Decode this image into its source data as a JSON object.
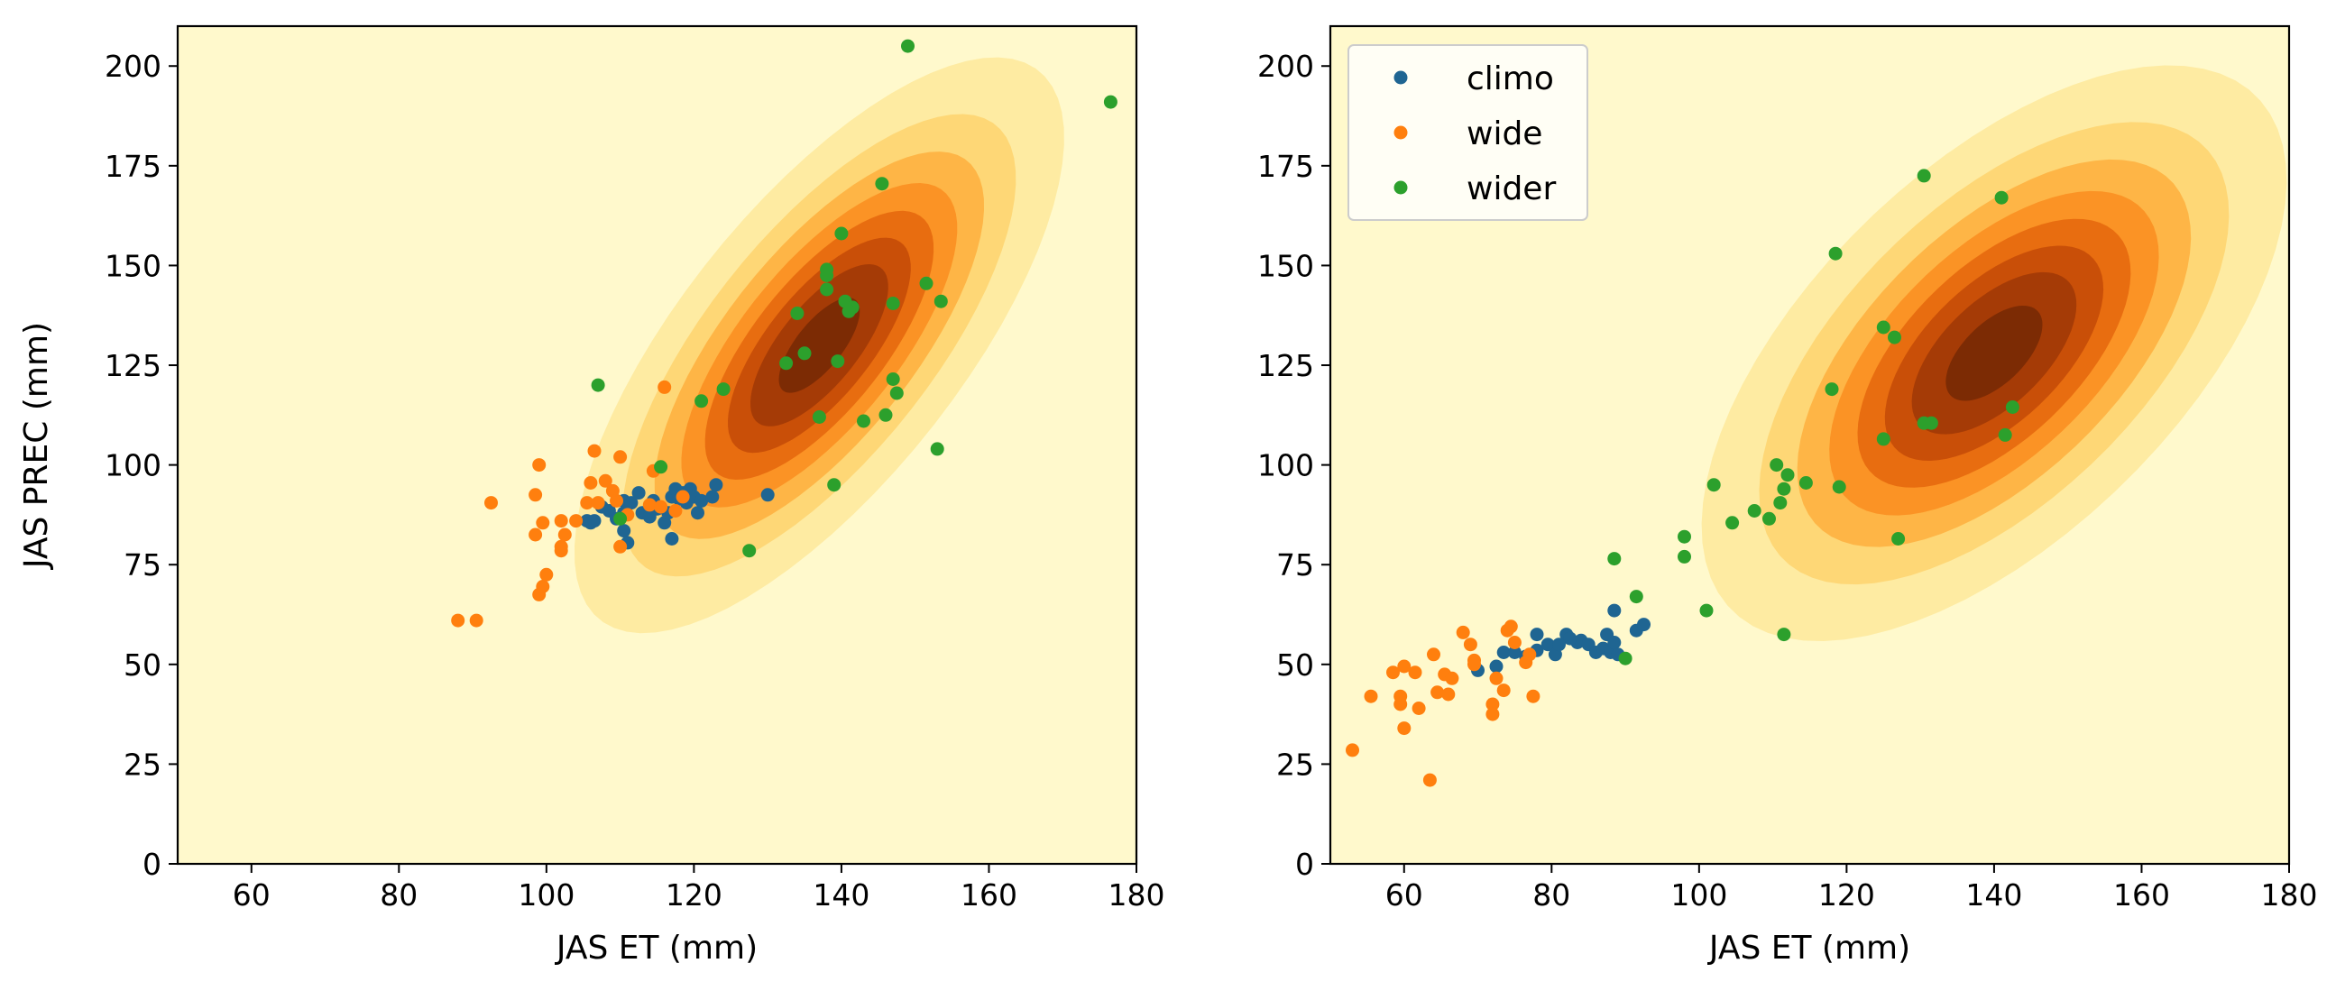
{
  "colors": {
    "background": "#fff9cc",
    "kde_levels": [
      "#fff9cc",
      "#feeba2",
      "#fed776",
      "#feb546",
      "#fb9325",
      "#e86d10",
      "#c94f08",
      "#a53b06",
      "#7c2b04"
    ],
    "climo": "#1f6592",
    "wide": "#ff7f0e",
    "wider": "#2ca02c"
  },
  "chart_data": [
    {
      "type": "scatter",
      "panel": "left",
      "xlabel": "JAS ET (mm)",
      "ylabel": "JAS PREC (mm)",
      "xlim": [
        50,
        180
      ],
      "ylim": [
        0,
        210
      ],
      "xticks": [
        "60",
        "80",
        "100",
        "120",
        "140",
        "160",
        "180"
      ],
      "yticks": [
        "0",
        "25",
        "50",
        "75",
        "100",
        "125",
        "150",
        "175",
        "200"
      ],
      "grid": false,
      "legend": false,
      "kde_background": {
        "center": [
          137,
          130
        ],
        "sd": [
          14.4,
          31.3
        ],
        "correlation": 0.72,
        "levels": [
          0.07,
          0.18,
          0.3,
          0.43,
          0.56,
          0.69,
          0.81,
          0.93
        ],
        "color_scale": "YlOrBr"
      },
      "series": [
        {
          "name": "climo",
          "color": "#1f6592",
          "points": [
            [
              105.5,
              86
            ],
            [
              106,
              85.5
            ],
            [
              106.5,
              86
            ],
            [
              107.5,
              89.5
            ],
            [
              108.5,
              88.5
            ],
            [
              109.5,
              86.5
            ],
            [
              110.5,
              88
            ],
            [
              110.5,
              91
            ],
            [
              110.5,
              83.5
            ],
            [
              111,
              80.5
            ],
            [
              111.5,
              90.5
            ],
            [
              112.5,
              93
            ],
            [
              113,
              88
            ],
            [
              114,
              87
            ],
            [
              114.5,
              91
            ],
            [
              115,
              89
            ],
            [
              116,
              85.5
            ],
            [
              116.5,
              88
            ],
            [
              117,
              92
            ],
            [
              117,
              81.5
            ],
            [
              117.5,
              94
            ],
            [
              118,
              91.5
            ],
            [
              118.5,
              93
            ],
            [
              119,
              90.5
            ],
            [
              119.5,
              94
            ],
            [
              120,
              92
            ],
            [
              120.5,
              88
            ],
            [
              121,
              91
            ],
            [
              122.5,
              92
            ],
            [
              123,
              95
            ],
            [
              130,
              92.5
            ]
          ]
        },
        {
          "name": "wide",
          "color": "#ff7f0e",
          "points": [
            [
              88,
              61
            ],
            [
              90.5,
              61
            ],
            [
              92.5,
              90.5
            ],
            [
              98.5,
              82.5
            ],
            [
              98.5,
              92.5
            ],
            [
              99,
              100
            ],
            [
              99,
              67.5
            ],
            [
              99.5,
              85.5
            ],
            [
              99.5,
              69.5
            ],
            [
              100,
              72.5
            ],
            [
              102,
              78.5
            ],
            [
              102,
              86
            ],
            [
              102.5,
              82.5
            ],
            [
              104,
              86
            ],
            [
              105.5,
              90.5
            ],
            [
              106,
              95.5
            ],
            [
              106.5,
              103.5
            ],
            [
              107,
              90.5
            ],
            [
              108,
              96
            ],
            [
              109,
              93.5
            ],
            [
              109.5,
              91
            ],
            [
              110,
              79.5
            ],
            [
              110,
              102
            ],
            [
              111,
              87.5
            ],
            [
              114,
              90
            ],
            [
              114.5,
              98.5
            ],
            [
              115.5,
              89.5
            ],
            [
              116,
              119.5
            ],
            [
              117.5,
              88.5
            ],
            [
              118.5,
              92
            ],
            [
              102,
              79.5
            ]
          ]
        },
        {
          "name": "wider",
          "color": "#2ca02c",
          "points": [
            [
              107,
              120
            ],
            [
              110,
              86.5
            ],
            [
              115.5,
              99.5
            ],
            [
              121,
              116
            ],
            [
              124,
              119
            ],
            [
              127.5,
              78.5
            ],
            [
              132.5,
              125.5
            ],
            [
              134,
              138
            ],
            [
              135,
              128
            ],
            [
              137,
              112
            ],
            [
              138,
              144
            ],
            [
              138,
              147.5
            ],
            [
              138,
              149
            ],
            [
              139,
              95
            ],
            [
              139.5,
              126
            ],
            [
              140,
              158
            ],
            [
              140.5,
              141
            ],
            [
              141.5,
              139.5
            ],
            [
              141,
              138.5
            ],
            [
              143,
              111
            ],
            [
              145.5,
              170.5
            ],
            [
              146,
              112.5
            ],
            [
              147,
              140.5
            ],
            [
              147,
              121.5
            ],
            [
              147.5,
              118
            ],
            [
              149,
              205
            ],
            [
              151.5,
              145.5
            ],
            [
              153,
              104
            ],
            [
              153.5,
              141
            ],
            [
              176.5,
              191
            ]
          ]
        }
      ]
    },
    {
      "type": "scatter",
      "panel": "right",
      "xlabel": "JAS ET (mm)",
      "ylabel": "",
      "xlim": [
        50,
        180
      ],
      "ylim": [
        0,
        210
      ],
      "xticks": [
        "60",
        "80",
        "100",
        "120",
        "140",
        "160",
        "180"
      ],
      "yticks": [
        "0",
        "25",
        "50",
        "75",
        "100",
        "125",
        "150",
        "175",
        "200"
      ],
      "grid": false,
      "legend": {
        "position": "top-left",
        "entries": [
          "climo",
          "wide",
          "wider"
        ]
      },
      "kde_background": {
        "center": [
          140,
          128
        ],
        "sd": [
          17.2,
          31.3
        ],
        "correlation": 0.6,
        "levels": [
          0.07,
          0.18,
          0.3,
          0.43,
          0.56,
          0.69,
          0.81,
          0.93
        ],
        "color_scale": "YlOrBr"
      },
      "series": [
        {
          "name": "climo",
          "color": "#1f6592",
          "points": [
            [
              70,
              48.5
            ],
            [
              72.5,
              49.5
            ],
            [
              73.5,
              53
            ],
            [
              75,
              53
            ],
            [
              76.5,
              52
            ],
            [
              78,
              53.5
            ],
            [
              78,
              57.5
            ],
            [
              79.5,
              55
            ],
            [
              80.5,
              52.5
            ],
            [
              82,
              57.5
            ],
            [
              83.5,
              55.5
            ],
            [
              84,
              56
            ],
            [
              85,
              55
            ],
            [
              86,
              53
            ],
            [
              87,
              54
            ],
            [
              87.5,
              57.5
            ],
            [
              88,
              53
            ],
            [
              88.5,
              63.5
            ],
            [
              88.5,
              55.5
            ],
            [
              89,
              52.5
            ],
            [
              91.5,
              58.5
            ],
            [
              92.5,
              60
            ],
            [
              82.5,
              56.5
            ],
            [
              81,
              55
            ]
          ]
        },
        {
          "name": "wide",
          "color": "#ff7f0e",
          "points": [
            [
              53,
              28.5
            ],
            [
              55.5,
              42
            ],
            [
              58.5,
              48
            ],
            [
              59.5,
              42
            ],
            [
              59.5,
              40
            ],
            [
              60,
              49.5
            ],
            [
              60,
              34
            ],
            [
              61.5,
              48
            ],
            [
              62,
              39
            ],
            [
              63.5,
              21
            ],
            [
              64,
              52.5
            ],
            [
              64.5,
              43
            ],
            [
              65.5,
              47.5
            ],
            [
              66,
              42.5
            ],
            [
              66.5,
              46.5
            ],
            [
              68,
              58
            ],
            [
              69,
              55
            ],
            [
              69.5,
              51
            ],
            [
              69.5,
              50
            ],
            [
              72,
              40
            ],
            [
              72,
              37.5
            ],
            [
              72.5,
              46.5
            ],
            [
              73.5,
              43.5
            ],
            [
              74,
              58.5
            ],
            [
              74.5,
              59.5
            ],
            [
              75,
              55.5
            ],
            [
              76.5,
              50.5
            ],
            [
              77,
              52.5
            ],
            [
              77.5,
              42
            ]
          ]
        },
        {
          "name": "wider",
          "color": "#2ca02c",
          "points": [
            [
              88.5,
              76.5
            ],
            [
              90,
              51.5
            ],
            [
              91.5,
              67
            ],
            [
              98,
              77
            ],
            [
              98,
              82
            ],
            [
              101,
              63.5
            ],
            [
              102,
              95
            ],
            [
              104.5,
              85.5
            ],
            [
              107.5,
              88.5
            ],
            [
              109.5,
              86.5
            ],
            [
              110.5,
              100
            ],
            [
              111,
              90.5
            ],
            [
              111.5,
              94
            ],
            [
              111.5,
              57.5
            ],
            [
              112,
              97.5
            ],
            [
              114.5,
              95.5
            ],
            [
              118,
              119
            ],
            [
              118.5,
              153
            ],
            [
              119,
              94.5
            ],
            [
              125,
              106.5
            ],
            [
              125,
              134.5
            ],
            [
              126.5,
              132
            ],
            [
              127,
              81.5
            ],
            [
              130.5,
              110.5
            ],
            [
              130.5,
              172.5
            ],
            [
              131.5,
              110.5
            ],
            [
              141,
              167
            ],
            [
              141.5,
              107.5
            ],
            [
              142.5,
              114.5
            ]
          ]
        }
      ]
    }
  ]
}
